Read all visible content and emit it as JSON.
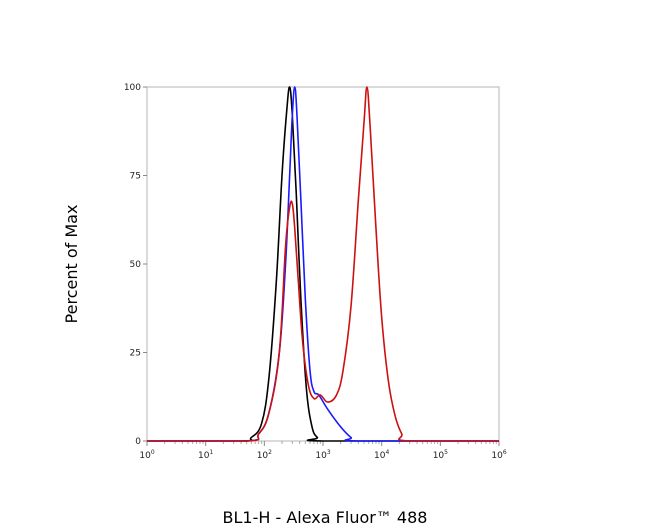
{
  "chart_data": {
    "type": "line",
    "xlabel": "BL1-H - Alexa Fluor™ 488",
    "ylabel": "Percent of Max",
    "x_scale": "log",
    "xlim": [
      1,
      1000000
    ],
    "ylim": [
      0,
      100
    ],
    "x_ticks": [
      {
        "base": "10",
        "exp": "0"
      },
      {
        "base": "10",
        "exp": "1"
      },
      {
        "base": "10",
        "exp": "2"
      },
      {
        "base": "10",
        "exp": "3"
      },
      {
        "base": "10",
        "exp": "4"
      },
      {
        "base": "10",
        "exp": "5"
      },
      {
        "base": "10",
        "exp": "6"
      }
    ],
    "y_ticks": [
      "0",
      "25",
      "50",
      "75",
      "100"
    ],
    "grid": false,
    "legend": "none",
    "series": [
      {
        "color": "#000000",
        "points": [
          [
            1,
            0
          ],
          [
            40,
            0
          ],
          [
            60,
            1
          ],
          [
            90,
            5
          ],
          [
            120,
            18
          ],
          [
            160,
            45
          ],
          [
            200,
            75
          ],
          [
            240,
            93
          ],
          [
            270,
            100
          ],
          [
            300,
            92
          ],
          [
            350,
            70
          ],
          [
            420,
            40
          ],
          [
            520,
            15
          ],
          [
            650,
            4
          ],
          [
            800,
            1
          ],
          [
            1000,
            0
          ],
          [
            1000000,
            0
          ]
        ]
      },
      {
        "color": "#1a1aff",
        "points": [
          [
            1,
            0
          ],
          [
            50,
            0
          ],
          [
            80,
            2
          ],
          [
            120,
            8
          ],
          [
            180,
            25
          ],
          [
            230,
            50
          ],
          [
            270,
            75
          ],
          [
            300,
            92
          ],
          [
            330,
            100
          ],
          [
            360,
            92
          ],
          [
            420,
            68
          ],
          [
            500,
            40
          ],
          [
            600,
            20
          ],
          [
            700,
            14
          ],
          [
            850,
            13
          ],
          [
            1200,
            9
          ],
          [
            2000,
            4
          ],
          [
            3000,
            1
          ],
          [
            4000,
            0
          ],
          [
            1000000,
            0
          ]
        ]
      },
      {
        "color": "#cc1111",
        "points": [
          [
            1,
            0
          ],
          [
            50,
            0
          ],
          [
            80,
            2
          ],
          [
            120,
            8
          ],
          [
            180,
            25
          ],
          [
            230,
            55
          ],
          [
            270,
            66
          ],
          [
            300,
            67
          ],
          [
            330,
            60
          ],
          [
            380,
            45
          ],
          [
            450,
            28
          ],
          [
            560,
            16
          ],
          [
            700,
            12
          ],
          [
            900,
            13
          ],
          [
            1200,
            11
          ],
          [
            1700,
            13
          ],
          [
            2200,
            20
          ],
          [
            3000,
            38
          ],
          [
            4000,
            68
          ],
          [
            5000,
            90
          ],
          [
            5600,
            100
          ],
          [
            6300,
            90
          ],
          [
            8000,
            60
          ],
          [
            10000,
            35
          ],
          [
            13000,
            17
          ],
          [
            17000,
            7
          ],
          [
            22000,
            2
          ],
          [
            28000,
            0
          ],
          [
            1000000,
            0
          ]
        ]
      }
    ]
  }
}
